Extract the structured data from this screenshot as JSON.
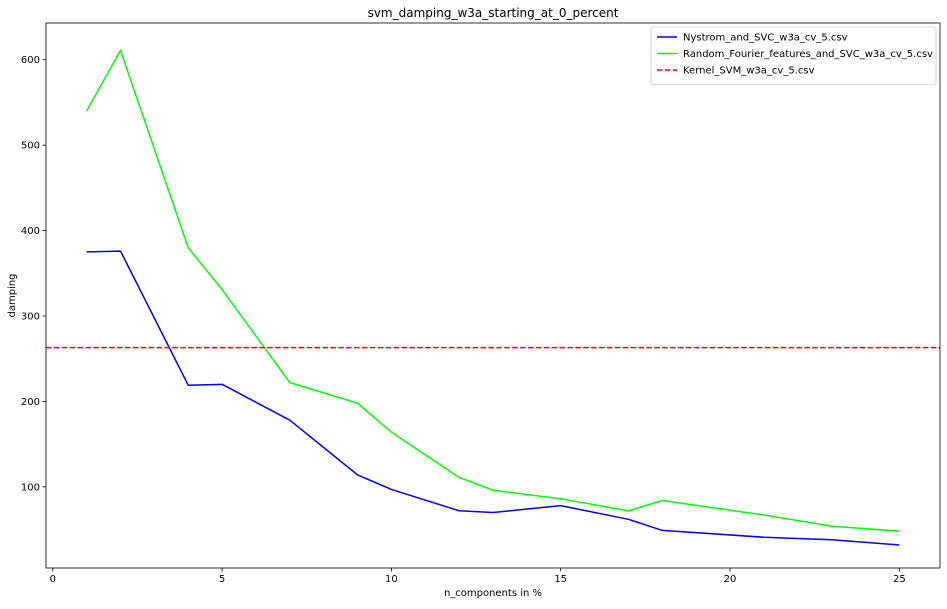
{
  "chart_data": {
    "type": "line",
    "title": "svm_damping_w3a_starting_at_0_percent",
    "xlabel": "n_components in %",
    "ylabel": "damping",
    "xlim": [
      -0.2,
      26.2
    ],
    "ylim": [
      5,
      643
    ],
    "xticks": [
      0,
      5,
      10,
      15,
      20,
      25
    ],
    "yticks": [
      100,
      200,
      300,
      400,
      500,
      600
    ],
    "grid": false,
    "legend_position": "top-right",
    "series": [
      {
        "name": "Nystrom_and_SVC_w3a_cv_5.csv",
        "color": "#0000ff",
        "style": "solid",
        "x": [
          1,
          2,
          4,
          5,
          7,
          9,
          10,
          12,
          13,
          15,
          17,
          18,
          21,
          23,
          25
        ],
        "y": [
          375,
          376,
          219,
          220,
          178,
          114,
          97,
          72,
          70,
          78,
          62,
          49,
          41,
          38,
          32
        ]
      },
      {
        "name": "Random_Fourier_features_and_SVC_w3a_cv_5.csv",
        "color": "#00ff00",
        "style": "solid",
        "x": [
          1,
          2,
          4,
          5,
          7,
          9,
          10,
          12,
          13,
          15,
          17,
          18,
          21,
          23,
          25
        ],
        "y": [
          540,
          611,
          380,
          331,
          222,
          198,
          164,
          111,
          96,
          86,
          72,
          84,
          67,
          54,
          48
        ]
      },
      {
        "name": "Kernel_SVM_w3a_cv_5.csv",
        "color": "#ff0000",
        "style": "dashed",
        "hline": 263
      }
    ]
  }
}
